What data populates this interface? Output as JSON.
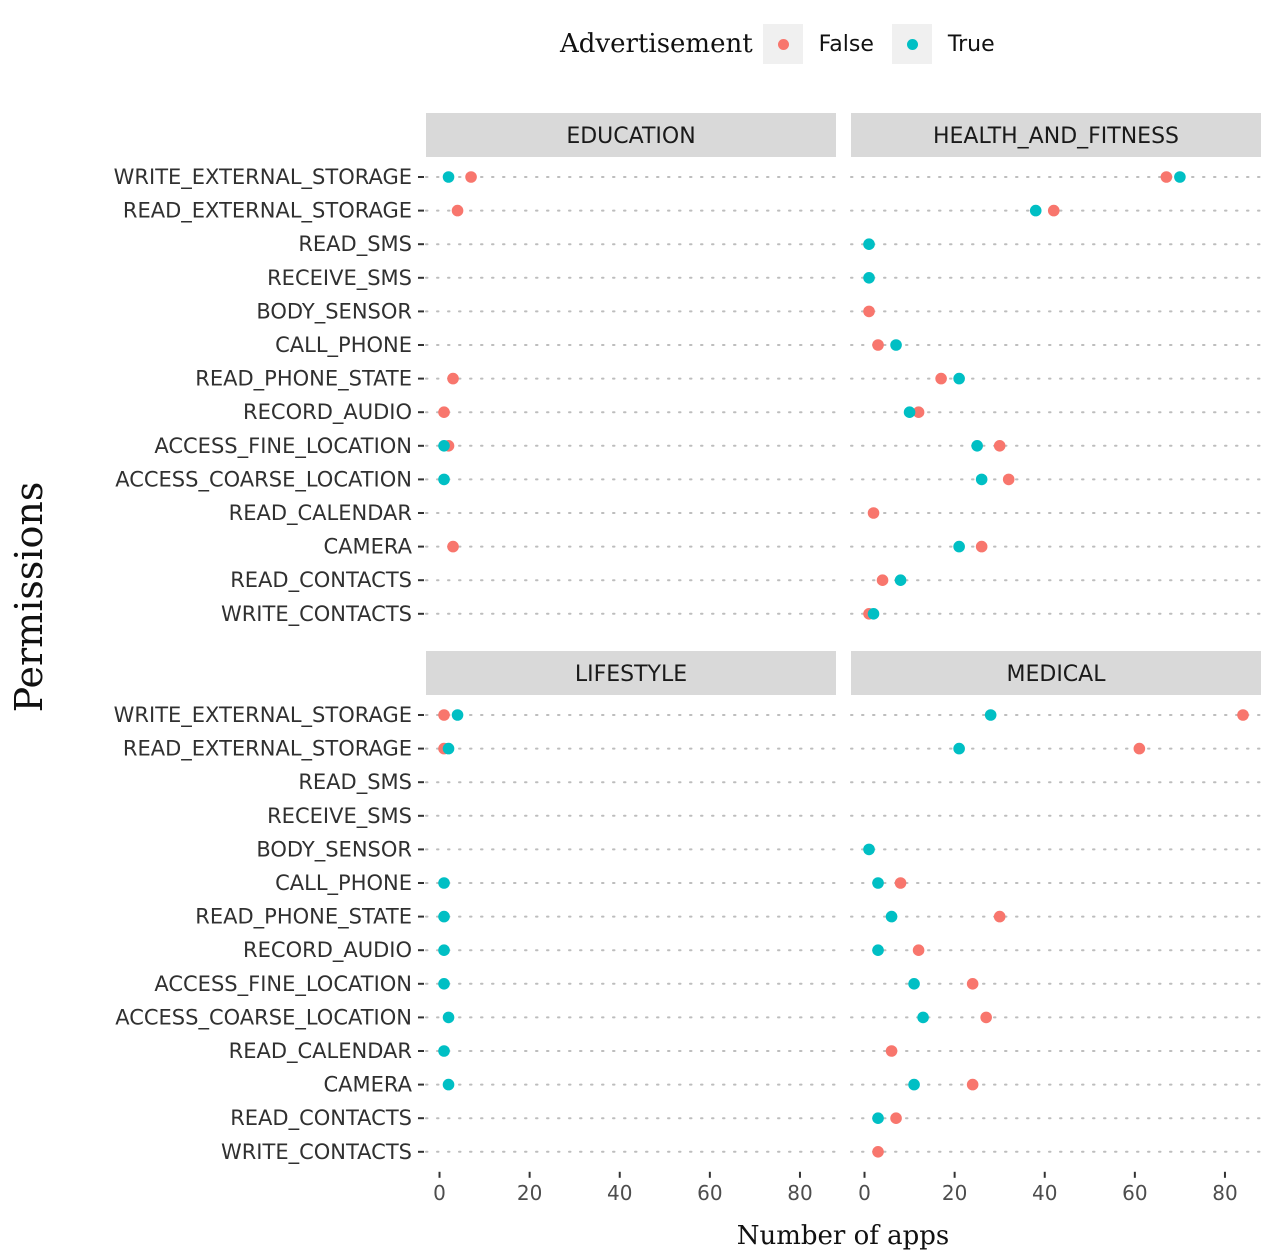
{
  "chart_data": {
    "type": "scatter",
    "xlabel": "Number of apps",
    "ylabel": "Permissions",
    "xlim": [
      -3,
      88
    ],
    "x_ticks": [
      0,
      20,
      40,
      60,
      80
    ],
    "legend": {
      "title": "Advertisement",
      "placement": "top",
      "entries": [
        {
          "label": "False",
          "color": "#F8766D"
        },
        {
          "label": "True",
          "color": "#00BFC4"
        }
      ]
    },
    "grid": "dotted horizontal",
    "categories": [
      "WRITE_EXTERNAL_STORAGE",
      "READ_EXTERNAL_STORAGE",
      "READ_SMS",
      "RECEIVE_SMS",
      "BODY_SENSOR",
      "CALL_PHONE",
      "READ_PHONE_STATE",
      "RECORD_AUDIO",
      "ACCESS_FINE_LOCATION",
      "ACCESS_COARSE_LOCATION",
      "READ_CALENDAR",
      "CAMERA",
      "READ_CONTACTS",
      "WRITE_CONTACTS"
    ],
    "panels": [
      {
        "name": "EDUCATION",
        "series": [
          {
            "name": "False",
            "values": [
              7,
              4,
              null,
              null,
              null,
              null,
              3,
              1,
              2,
              null,
              null,
              3,
              null,
              null
            ]
          },
          {
            "name": "True",
            "values": [
              2,
              null,
              null,
              null,
              null,
              null,
              null,
              null,
              1,
              1,
              null,
              null,
              null,
              null
            ]
          }
        ]
      },
      {
        "name": "HEALTH_AND_FITNESS",
        "series": [
          {
            "name": "False",
            "values": [
              67,
              42,
              null,
              null,
              1,
              3,
              17,
              12,
              30,
              32,
              2,
              26,
              4,
              1
            ]
          },
          {
            "name": "True",
            "values": [
              70,
              38,
              1,
              1,
              null,
              7,
              21,
              10,
              25,
              26,
              null,
              21,
              8,
              2
            ]
          }
        ]
      },
      {
        "name": "LIFESTYLE",
        "series": [
          {
            "name": "False",
            "values": [
              1,
              1,
              null,
              null,
              null,
              null,
              null,
              null,
              null,
              null,
              null,
              null,
              null,
              null
            ]
          },
          {
            "name": "True",
            "values": [
              4,
              2,
              null,
              null,
              null,
              1,
              1,
              1,
              1,
              2,
              1,
              2,
              null,
              null
            ]
          }
        ]
      },
      {
        "name": "MEDICAL",
        "series": [
          {
            "name": "False",
            "values": [
              84,
              61,
              null,
              null,
              null,
              8,
              30,
              12,
              24,
              27,
              6,
              24,
              7,
              3
            ]
          },
          {
            "name": "True",
            "values": [
              28,
              21,
              null,
              null,
              1,
              3,
              6,
              3,
              11,
              13,
              null,
              11,
              3,
              null
            ]
          }
        ]
      }
    ]
  }
}
